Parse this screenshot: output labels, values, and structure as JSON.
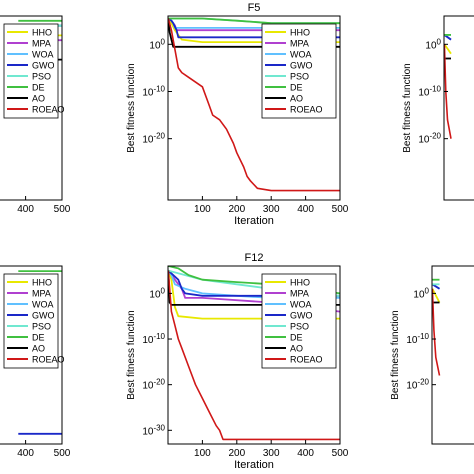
{
  "chart_data": [
    {
      "panel": "top-left",
      "type": "line",
      "title": "",
      "xlabel": "",
      "ylabel": "",
      "xlim": [
        0,
        500
      ],
      "x_ticks": [
        "400",
        "500"
      ],
      "y_ticks": [],
      "legend_placement": "top-right",
      "series": [
        {
          "name": "HHO",
          "color": "#e8e800",
          "x": [
            380,
            500
          ],
          "y": [
            0.1,
            0.1
          ]
        },
        {
          "name": "MPA",
          "color": "#b040d0",
          "x": [
            380,
            500
          ],
          "y": [
            0.01,
            0.01
          ]
        },
        {
          "name": "WOA",
          "color": "#60c0ff",
          "x": [
            380,
            500
          ],
          "y": [
            10.0,
            10.0
          ]
        },
        {
          "name": "GWO",
          "color": "#1a28c8",
          "x": [
            380,
            500
          ],
          "y": [
            10.0,
            10.0
          ]
        },
        {
          "name": "PSO",
          "color": "#70e8d0",
          "x": [
            380,
            500
          ],
          "y": [
            10.0,
            10.0
          ]
        },
        {
          "name": "DE",
          "color": "#40c040",
          "x": [
            380,
            500
          ],
          "y": [
            100.0,
            100.0
          ]
        },
        {
          "name": "AO",
          "color": "#000000",
          "x": [
            380,
            500
          ],
          "y": [
            1e-06,
            1e-06
          ]
        },
        {
          "name": "ROEAO",
          "color": "#d01818",
          "x": [],
          "y": []
        }
      ]
    },
    {
      "panel": "top-center",
      "type": "line",
      "title": "F5",
      "xlabel": "Iteration",
      "ylabel": "Best fitness function",
      "xlim": [
        0,
        500
      ],
      "ylim": [
        1e-33,
        1000000.0
      ],
      "y_scale": "log",
      "x_ticks": [
        "100",
        "200",
        "300",
        "400",
        "500"
      ],
      "y_ticks": [
        "10^0",
        "10^-10",
        "10^-20"
      ],
      "legend_placement": "top-right",
      "series": [
        {
          "name": "HHO",
          "color": "#e8e800",
          "x": [
            1,
            10,
            20,
            30,
            40,
            100,
            200,
            500
          ],
          "y": [
            300000.0,
            30000.0,
            1000.0,
            100,
            10,
            3,
            3,
            3
          ]
        },
        {
          "name": "MPA",
          "color": "#b040d0",
          "x": [
            1,
            10,
            20,
            25,
            100,
            300,
            500
          ],
          "y": [
            300000.0,
            100000.0,
            10000.0,
            1000.0,
            1000.0,
            1000.0,
            1000.0
          ]
        },
        {
          "name": "WOA",
          "color": "#60c0ff",
          "x": [
            1,
            10,
            15,
            20,
            100,
            300,
            500
          ],
          "y": [
            300000.0,
            100000.0,
            30000.0,
            3000.0,
            3000.0,
            3000.0,
            3000.0
          ]
        },
        {
          "name": "GWO",
          "color": "#1a28c8",
          "x": [
            1,
            10,
            15,
            25,
            30,
            300,
            500
          ],
          "y": [
            300000.0,
            100000.0,
            30000.0,
            1000.0,
            30,
            30,
            30
          ]
        },
        {
          "name": "PSO",
          "color": "#70e8d0",
          "x": [
            1,
            100,
            200,
            300,
            400,
            500
          ],
          "y": [
            300000.0,
            300000.0,
            100000.0,
            30000.0,
            30000.0,
            30000.0
          ]
        },
        {
          "name": "DE",
          "color": "#40c040",
          "x": [
            1,
            50,
            100,
            200,
            300,
            400,
            500
          ],
          "y": [
            300000.0,
            300000.0,
            300000.0,
            100000.0,
            30000.0,
            30000.0,
            30000.0
          ]
        },
        {
          "name": "AO",
          "color": "#000000",
          "x": [
            1,
            5,
            10,
            15,
            500
          ],
          "y": [
            300000.0,
            300.0,
            10,
            0.3,
            0.3
          ]
        },
        {
          "name": "ROEAO",
          "color": "#d01818",
          "x": [
            1,
            10,
            30,
            40,
            60,
            100,
            120,
            130,
            150,
            170,
            190,
            200,
            220,
            230,
            240,
            260,
            300,
            400,
            500
          ],
          "y": [
            300000.0,
            1000.0,
            1e-05,
            1e-06,
            1e-07,
            1e-09,
            1e-13,
            1e-15,
            1e-16,
            1e-18,
            1e-21,
            1e-23,
            1e-26,
            1e-28,
            1e-29,
            3e-31,
            1e-31,
            1e-31,
            1e-31
          ]
        }
      ]
    },
    {
      "panel": "top-right",
      "type": "line",
      "title": "",
      "xlabel": "",
      "ylabel": "Best fitness function",
      "y_scale": "log",
      "y_ticks": [
        "10^0",
        "10^-10",
        "10^-20"
      ],
      "series": [
        {
          "name": "HHO",
          "color": "#e8e800",
          "x": [
            1,
            20
          ],
          "y": [
            1.0,
            0.01
          ]
        },
        {
          "name": "MPA",
          "color": "#b040d0",
          "x": [
            1,
            20
          ],
          "y": [
            100.0,
            10.0
          ]
        },
        {
          "name": "WOA",
          "color": "#60c0ff",
          "x": [
            1,
            20
          ],
          "y": [
            100.0,
            10.0
          ]
        },
        {
          "name": "GWO",
          "color": "#1a28c8",
          "x": [
            1,
            20
          ],
          "y": [
            100.0,
            10.0
          ]
        },
        {
          "name": "PSO",
          "color": "#70e8d0",
          "x": [
            1,
            20
          ],
          "y": [
            100.0,
            100.0
          ]
        },
        {
          "name": "DE",
          "color": "#40c040",
          "x": [
            1,
            20
          ],
          "y": [
            100.0,
            100.0
          ]
        },
        {
          "name": "AO",
          "color": "#000000",
          "x": [
            1,
            20
          ],
          "y": [
            0.001,
            0.001
          ]
        },
        {
          "name": "ROEAO",
          "color": "#d01818",
          "x": [
            1,
            5,
            10,
            20
          ],
          "y": [
            1.0,
            1e-10,
            1e-16,
            1e-20
          ]
        }
      ]
    },
    {
      "panel": "bottom-left",
      "type": "line",
      "title": "",
      "xlabel": "",
      "ylabel": "",
      "xlim": [
        0,
        500
      ],
      "x_ticks": [
        "400",
        "500"
      ],
      "y_ticks": [],
      "legend_placement": "top-right",
      "series": [
        {
          "name": "HHO",
          "color": "#e8e800",
          "x": [],
          "y": []
        },
        {
          "name": "MPA",
          "color": "#b040d0",
          "x": [],
          "y": []
        },
        {
          "name": "WOA",
          "color": "#60c0ff",
          "x": [],
          "y": []
        },
        {
          "name": "GWO",
          "color": "#1a28c8",
          "x": [
            380,
            500
          ],
          "y": [
            1e-30,
            1e-30
          ]
        },
        {
          "name": "PSO",
          "color": "#70e8d0",
          "x": [],
          "y": []
        },
        {
          "name": "DE",
          "color": "#40c040",
          "x": [
            380,
            500
          ],
          "y": [
            100.0,
            100.0
          ]
        },
        {
          "name": "AO",
          "color": "#000000",
          "x": [],
          "y": []
        },
        {
          "name": "ROEAO",
          "color": "#d01818",
          "x": [],
          "y": []
        }
      ]
    },
    {
      "panel": "bottom-center",
      "type": "line",
      "title": "F12",
      "xlabel": "Iteration",
      "ylabel": "Best fitness function",
      "xlim": [
        0,
        500
      ],
      "ylim": [
        1e-33,
        1000000.0
      ],
      "y_scale": "log",
      "x_ticks": [
        "100",
        "200",
        "300",
        "400",
        "500"
      ],
      "y_ticks": [
        "10^0",
        "10^-10",
        "10^-20",
        "10^-30"
      ],
      "legend_placement": "top-right",
      "series": [
        {
          "name": "HHO",
          "color": "#e8e800",
          "x": [
            1,
            10,
            20,
            30,
            100,
            200,
            500
          ],
          "y": [
            100000.0,
            1000.0,
            0.001,
            1e-05,
            3e-06,
            3e-06,
            3e-06
          ]
        },
        {
          "name": "MPA",
          "color": "#b040d0",
          "x": [
            1,
            20,
            40,
            50,
            100,
            300,
            500
          ],
          "y": [
            100000.0,
            1000.0,
            10,
            0.1,
            0.1,
            0.01,
            0.0001
          ]
        },
        {
          "name": "WOA",
          "color": "#60c0ff",
          "x": [
            1,
            10,
            20,
            50,
            100,
            200,
            300,
            400,
            500
          ],
          "y": [
            100000.0,
            10000.0,
            100,
            10,
            1,
            0.3,
            0.1,
            0.1,
            0.1
          ]
        },
        {
          "name": "GWO",
          "color": "#1a28c8",
          "x": [
            1,
            15,
            30,
            40,
            50,
            100,
            300,
            500
          ],
          "y": [
            100000.0,
            10000.0,
            1000.0,
            10,
            1,
            0.3,
            0.3,
            0.3
          ]
        },
        {
          "name": "PSO",
          "color": "#70e8d0",
          "x": [
            1,
            100,
            200,
            300,
            400,
            500
          ],
          "y": [
            100000.0,
            1000.0,
            100,
            10,
            1,
            0.3
          ]
        },
        {
          "name": "DE",
          "color": "#40c040",
          "x": [
            1,
            30,
            60,
            100,
            200,
            300,
            400,
            500
          ],
          "y": [
            1000000.0,
            300000.0,
            10000.0,
            1000.0,
            300,
            100,
            10,
            1
          ]
        },
        {
          "name": "AO",
          "color": "#000000",
          "x": [
            1,
            5,
            10,
            500
          ],
          "y": [
            100000.0,
            0.01,
            0.003,
            0.003
          ]
        },
        {
          "name": "ROEAO",
          "color": "#d01818",
          "x": [
            1,
            10,
            20,
            30,
            40,
            60,
            80,
            100,
            120,
            140,
            150,
            160,
            200,
            500
          ],
          "y": [
            100000.0,
            0.0001,
            1e-07,
            1e-10,
            1e-12,
            1e-16,
            1e-20,
            1e-23,
            1e-26,
            1e-29,
            1e-30,
            1e-32,
            1e-32,
            1e-32
          ]
        }
      ]
    },
    {
      "panel": "bottom-right",
      "type": "line",
      "title": "",
      "xlabel": "",
      "ylabel": "Best fitness function",
      "y_scale": "log",
      "y_ticks": [
        "10^0",
        "10^-10",
        "10^-20"
      ],
      "series": [
        {
          "name": "HHO",
          "color": "#e8e800",
          "x": [
            1,
            20
          ],
          "y": [
            10.0,
            0.01
          ]
        },
        {
          "name": "MPA",
          "color": "#b040d0",
          "x": [
            1,
            20
          ],
          "y": [
            100.0,
            10.0
          ]
        },
        {
          "name": "WOA",
          "color": "#60c0ff",
          "x": [
            1,
            20
          ],
          "y": [
            100.0,
            10.0
          ]
        },
        {
          "name": "GWO",
          "color": "#1a28c8",
          "x": [
            1,
            20
          ],
          "y": [
            100.0,
            10.0
          ]
        },
        {
          "name": "PSO",
          "color": "#70e8d0",
          "x": [
            1,
            20
          ],
          "y": [
            100.0,
            100.0
          ]
        },
        {
          "name": "DE",
          "color": "#40c040",
          "x": [
            1,
            20
          ],
          "y": [
            1000.0,
            1000.0
          ]
        },
        {
          "name": "AO",
          "color": "#000000",
          "x": [
            1,
            20
          ],
          "y": [
            0.01,
            0.01
          ]
        },
        {
          "name": "ROEAO",
          "color": "#d01818",
          "x": [
            1,
            5,
            10,
            20
          ],
          "y": [
            10.0,
            1e-08,
            1e-14,
            1e-18
          ]
        }
      ]
    }
  ]
}
